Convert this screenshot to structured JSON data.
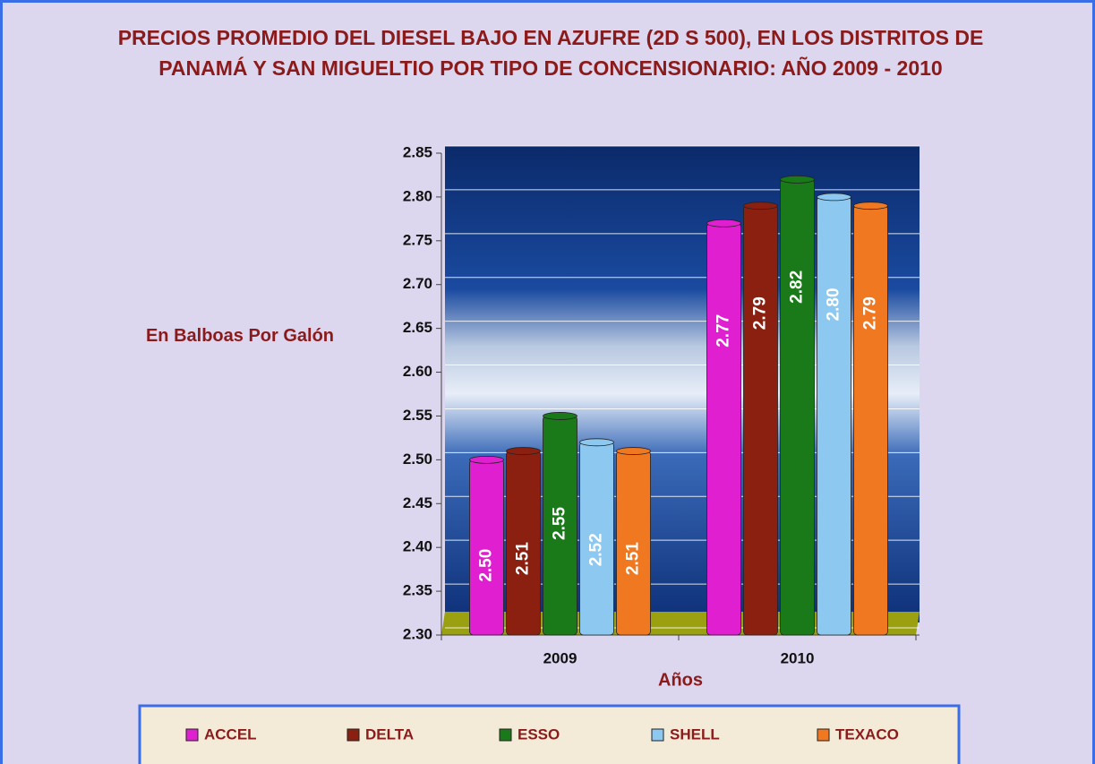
{
  "chart_data": {
    "type": "bar",
    "title": "PRECIOS PROMEDIO DEL DIESEL BAJO EN AZUFRE (2D S 500), EN LOS DISTRITOS DE PANAMÁ Y SAN MIGUELTIO POR TIPO DE CONCENSIONARIO: AÑO 2009 - 2010",
    "x_label": "Años",
    "y_label": "En Balboas Por Galón",
    "categories": [
      "2009",
      "2010"
    ],
    "series": [
      {
        "name": "ACCEL",
        "color": "#e020d0",
        "values": [
          2.5,
          2.77
        ],
        "value_labels": [
          "2.50",
          "2.77"
        ]
      },
      {
        "name": "DELTA",
        "color": "#8b2010",
        "values": [
          2.51,
          2.79
        ],
        "value_labels": [
          "2.51",
          "2.79"
        ]
      },
      {
        "name": "ESSO",
        "color": "#1a7a1a",
        "values": [
          2.55,
          2.82
        ],
        "value_labels": [
          "2.55",
          "2.82"
        ]
      },
      {
        "name": "SHELL",
        "color": "#8cc8f0",
        "values": [
          2.52,
          2.8
        ],
        "value_labels": [
          "2.52",
          "2.80"
        ]
      },
      {
        "name": "TEXACO",
        "color": "#f07820",
        "values": [
          2.51,
          2.79
        ],
        "value_labels": [
          "2.51",
          "2.79"
        ]
      }
    ],
    "ylim": [
      2.3,
      2.85
    ],
    "yticks": [
      {
        "value": 2.3,
        "label": "2.30"
      },
      2.35,
      {
        "value": 2.4,
        "label": "2.40"
      },
      2.45,
      {
        "value": 2.5,
        "label": "2.50"
      },
      2.55,
      {
        "value": 2.6,
        "label": "2.60"
      },
      2.65,
      {
        "value": 2.7,
        "label": "2.70"
      },
      2.75,
      {
        "value": 2.8,
        "label": "2.80"
      },
      2.85
    ],
    "grid": true,
    "legend": "bottom"
  }
}
